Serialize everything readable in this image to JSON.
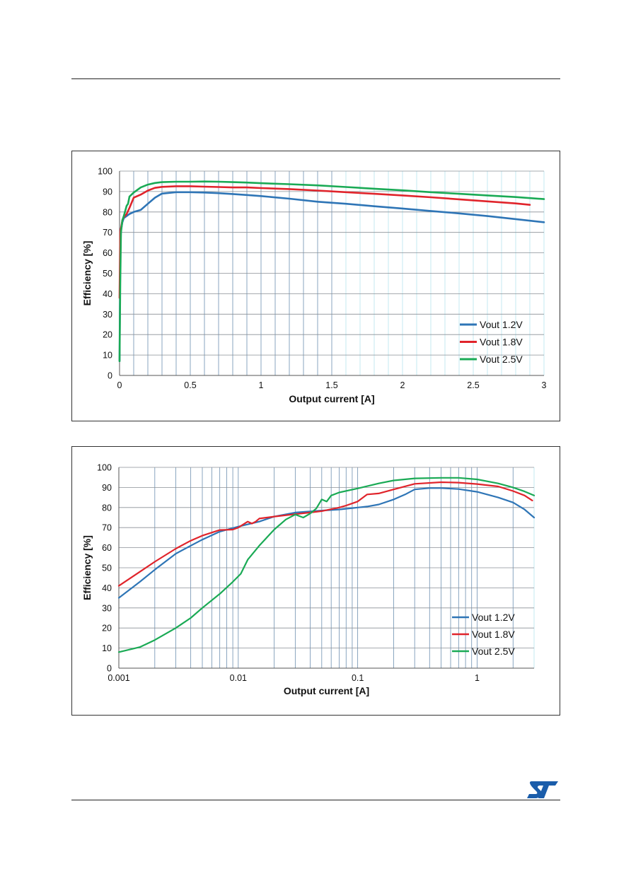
{
  "chart_data": [
    {
      "type": "line",
      "xscale": "linear",
      "xlabel": "Output current [A]",
      "ylabel": "Efficiency [%]",
      "xlim": [
        0,
        3
      ],
      "ylim": [
        0,
        100
      ],
      "xticks": [
        0,
        0.5,
        1,
        1.5,
        2,
        2.5,
        3
      ],
      "xtick_labels": [
        "0",
        "0.5",
        "1",
        "1.5",
        "2",
        "2.5",
        "3"
      ],
      "yticks": [
        0,
        10,
        20,
        30,
        40,
        50,
        60,
        70,
        80,
        90,
        100
      ],
      "ytick_labels": [
        "0",
        "10",
        "20",
        "30",
        "40",
        "50",
        "60",
        "70",
        "80",
        "90",
        "100"
      ],
      "grid": true,
      "legend_position": "bottom-right",
      "series": [
        {
          "name": "Vout 1.2V",
          "color": "#2e75b6",
          "x": [
            0,
            0.005,
            0.01,
            0.02,
            0.03,
            0.05,
            0.07,
            0.1,
            0.15,
            0.2,
            0.25,
            0.3,
            0.4,
            0.5,
            0.6,
            0.7,
            0.8,
            0.9,
            1.0,
            1.2,
            1.4,
            1.6,
            1.8,
            2.0,
            2.2,
            2.4,
            2.6,
            2.8,
            3.0
          ],
          "y": [
            7,
            62,
            71,
            75,
            77,
            78,
            79,
            80,
            81,
            84,
            87,
            89,
            89.7,
            89.7,
            89.5,
            89.2,
            88.8,
            88.3,
            87.8,
            86.5,
            85,
            84,
            82.8,
            81.7,
            80.5,
            79.3,
            78,
            76.5,
            75
          ]
        },
        {
          "name": "Vout 1.8V",
          "color": "#e0242b",
          "x": [
            0,
            0.005,
            0.01,
            0.02,
            0.03,
            0.05,
            0.07,
            0.1,
            0.15,
            0.2,
            0.25,
            0.3,
            0.4,
            0.5,
            0.6,
            0.7,
            0.8,
            0.9,
            1.0,
            1.2,
            1.4,
            1.6,
            1.8,
            2.0,
            2.2,
            2.4,
            2.6,
            2.8,
            2.9
          ],
          "y": [
            38,
            70,
            72,
            76,
            77.5,
            79,
            82,
            87,
            88.5,
            90.5,
            91.8,
            92.3,
            92.6,
            92.6,
            92.4,
            92.2,
            92,
            92,
            91.7,
            91.2,
            90.5,
            89.7,
            88.9,
            88.1,
            87.2,
            86.2,
            85.2,
            84.2,
            83.5
          ]
        },
        {
          "name": "Vout 2.5V",
          "color": "#1aaa55",
          "x": [
            0,
            0.005,
            0.01,
            0.02,
            0.03,
            0.05,
            0.06,
            0.07,
            0.1,
            0.15,
            0.2,
            0.25,
            0.3,
            0.4,
            0.5,
            0.6,
            0.7,
            0.8,
            0.9,
            1.0,
            1.2,
            1.4,
            1.6,
            1.8,
            2.0,
            2.2,
            2.4,
            2.6,
            2.8,
            3.0
          ],
          "y": [
            7,
            45,
            70,
            76,
            78,
            83,
            84,
            87.5,
            89.5,
            92,
            93.4,
            94.2,
            94.6,
            94.8,
            94.8,
            94.9,
            94.8,
            94.6,
            94.4,
            94.1,
            93.6,
            93,
            92.2,
            91.4,
            90.6,
            89.7,
            88.9,
            88.1,
            87.3,
            86.3
          ]
        }
      ]
    },
    {
      "type": "line",
      "xscale": "log",
      "xlabel": "Output current [A]",
      "ylabel": "Efficiency [%]",
      "xlim": [
        0.001,
        3
      ],
      "ylim": [
        0,
        100
      ],
      "xticks": [
        0.001,
        0.01,
        0.1,
        1
      ],
      "xtick_labels": [
        "0.001",
        "0.01",
        "0.1",
        "1"
      ],
      "yticks": [
        0,
        10,
        20,
        30,
        40,
        50,
        60,
        70,
        80,
        90,
        100
      ],
      "ytick_labels": [
        "0",
        "10",
        "20",
        "30",
        "40",
        "50",
        "60",
        "70",
        "80",
        "90",
        "100"
      ],
      "grid": true,
      "legend_position": "bottom-right",
      "series": [
        {
          "name": "Vout 1.2V",
          "color": "#2e75b6",
          "x": [
            0.001,
            0.0015,
            0.002,
            0.003,
            0.004,
            0.005,
            0.007,
            0.01,
            0.015,
            0.02,
            0.03,
            0.05,
            0.07,
            0.1,
            0.12,
            0.15,
            0.2,
            0.25,
            0.3,
            0.4,
            0.5,
            0.7,
            1.0,
            1.5,
            2.0,
            2.5,
            3.0
          ],
          "y": [
            35,
            43,
            49,
            57,
            61,
            64,
            68,
            70.5,
            73,
            75.5,
            77.5,
            78.5,
            79,
            80,
            80.5,
            81.5,
            84,
            86.5,
            89,
            89.7,
            89.7,
            89.2,
            87.8,
            85,
            82.5,
            79,
            75
          ]
        },
        {
          "name": "Vout 1.8V",
          "color": "#e0242b",
          "x": [
            0.001,
            0.0015,
            0.002,
            0.003,
            0.004,
            0.005,
            0.007,
            0.009,
            0.01,
            0.012,
            0.013,
            0.014,
            0.015,
            0.02,
            0.03,
            0.04,
            0.05,
            0.07,
            0.08,
            0.1,
            0.12,
            0.15,
            0.2,
            0.3,
            0.5,
            0.7,
            1.0,
            1.5,
            2.0,
            2.5,
            2.9
          ],
          "y": [
            41,
            48,
            53,
            59.5,
            63.5,
            66,
            68.8,
            69,
            70,
            73,
            72,
            73,
            74.5,
            75.5,
            76.7,
            77.5,
            78.2,
            80,
            81,
            83,
            86.5,
            87,
            89,
            91.8,
            92.6,
            92.4,
            91.7,
            90.5,
            88.2,
            86,
            83.5
          ]
        },
        {
          "name": "Vout 2.5V",
          "color": "#1aaa55",
          "x": [
            0.001,
            0.0015,
            0.002,
            0.003,
            0.004,
            0.005,
            0.007,
            0.009,
            0.0105,
            0.012,
            0.015,
            0.02,
            0.025,
            0.03,
            0.035,
            0.04,
            0.045,
            0.05,
            0.055,
            0.06,
            0.07,
            0.1,
            0.15,
            0.2,
            0.3,
            0.5,
            0.7,
            1.0,
            1.5,
            2.0,
            2.5,
            3.0
          ],
          "y": [
            8,
            10.5,
            14,
            20,
            25,
            30,
            37,
            43,
            47,
            54,
            61,
            69,
            74,
            76.5,
            75,
            77,
            79.5,
            84,
            83,
            86,
            87.5,
            89.5,
            92,
            93.5,
            94.5,
            94.8,
            94.8,
            94,
            92,
            90,
            88,
            86
          ]
        }
      ]
    }
  ],
  "brand": {
    "logo_name": "ST",
    "logo_color": "#1b5daa"
  }
}
